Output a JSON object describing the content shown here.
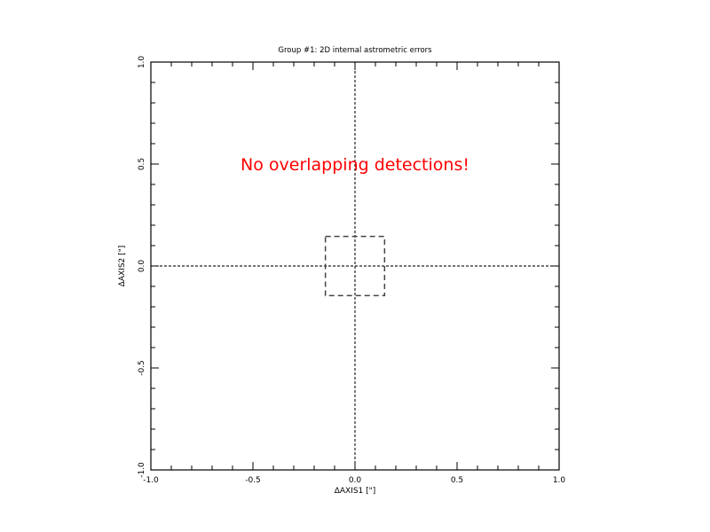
{
  "chart_data": {
    "type": "scatter",
    "title": "Group #1: 2D internal astrometric errors",
    "xlabel": "ΔAXIS1 [\"]",
    "ylabel": "ΔAXIS2 [\"]",
    "xlim": [
      -1.0,
      1.0
    ],
    "ylim": [
      -1.0,
      1.0
    ],
    "x_ticks": [
      -1.0,
      -0.5,
      0.0,
      0.5,
      1.0
    ],
    "y_ticks": [
      -1.0,
      -0.5,
      0.0,
      0.5,
      1.0
    ],
    "x_tick_labels": [
      "-1.0",
      "-0.5",
      "0.0",
      "0.5",
      "1.0"
    ],
    "y_tick_labels": [
      "-1.0",
      "-0.5",
      "0.0",
      "0.5",
      "1.0"
    ],
    "grid": false,
    "points": [],
    "crosshair": {
      "x": 0.0,
      "y": 0.0
    },
    "reference_box": {
      "x": [
        -0.145,
        0.145
      ],
      "y": [
        -0.145,
        0.145
      ]
    },
    "annotation": {
      "text": "No overlapping detections!",
      "x": 0.0,
      "y": 0.5,
      "color": "#ff0000"
    }
  }
}
